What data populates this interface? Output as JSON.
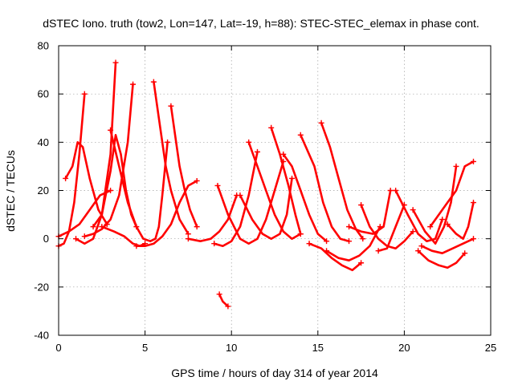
{
  "chart_data": {
    "type": "line",
    "title": "dSTEC Iono. truth (tow2, Lon=147, Lat=-19, h=88): STEC-STEC_elemax in phase cont.",
    "xlabel": "GPS time / hours of day 314 of year 2014",
    "ylabel": "dSTEC  / TECUs",
    "xlim": [
      0,
      25
    ],
    "ylim": [
      -40,
      80
    ],
    "x_ticks": [
      0,
      5,
      10,
      15,
      20,
      25
    ],
    "y_ticks": [
      -40,
      -20,
      0,
      20,
      40,
      60,
      80
    ],
    "grid": true,
    "legend": "none",
    "color": "#ff0000",
    "marker": "plus",
    "series": [
      {
        "x": [
          0.0,
          0.3,
          0.6,
          0.9,
          1.2,
          1.5
        ],
        "y": [
          -3,
          -2,
          3,
          15,
          35,
          60
        ]
      },
      {
        "x": [
          0.4,
          0.8,
          1.1,
          1.4,
          1.8,
          2.3,
          2.8
        ],
        "y": [
          25,
          30,
          40,
          38,
          25,
          12,
          6
        ]
      },
      {
        "x": [
          0.0,
          0.6,
          1.2,
          1.8,
          2.4,
          3.0
        ],
        "y": [
          1,
          3,
          6,
          12,
          18,
          20
        ]
      },
      {
        "x": [
          1.0,
          1.5,
          2.0,
          2.5,
          3.0,
          3.3
        ],
        "y": [
          0,
          -2,
          0,
          10,
          35,
          73
        ]
      },
      {
        "x": [
          1.5,
          2.0,
          2.5,
          3.0,
          3.5,
          4.0,
          4.3
        ],
        "y": [
          1,
          2,
          4,
          8,
          18,
          40,
          64
        ]
      },
      {
        "x": [
          2.0,
          2.5,
          3.0,
          3.3,
          3.6,
          3.9,
          4.2,
          4.5
        ],
        "y": [
          5,
          10,
          28,
          43,
          35,
          20,
          10,
          5
        ]
      },
      {
        "x": [
          3.0,
          3.5,
          4.0,
          4.5,
          4.9,
          5.3,
          5.6,
          5.8,
          6.0,
          6.3
        ],
        "y": [
          45,
          30,
          15,
          5,
          0,
          -1,
          0,
          5,
          18,
          40
        ]
      },
      {
        "x": [
          5.5,
          5.8,
          6.2,
          6.5,
          7.0,
          7.5
        ],
        "y": [
          65,
          50,
          30,
          20,
          8,
          2
        ]
      },
      {
        "x": [
          6.5,
          6.8,
          7.0,
          7.3,
          7.6,
          8.0
        ],
        "y": [
          55,
          40,
          30,
          20,
          12,
          5
        ]
      },
      {
        "x": [
          2.5,
          3.2,
          3.8,
          4.3,
          4.7,
          5.0
        ],
        "y": [
          5,
          3,
          1,
          -2,
          -3,
          -2
        ]
      },
      {
        "x": [
          4.5,
          5.0,
          5.5,
          6.0,
          6.5,
          7.0,
          7.5,
          8.0
        ],
        "y": [
          -3,
          -3,
          -2,
          1,
          6,
          15,
          22,
          24
        ]
      },
      {
        "x": [
          7.5,
          8.2,
          8.8,
          9.3,
          9.8,
          10.3
        ],
        "y": [
          0,
          -1,
          0,
          3,
          8,
          18
        ]
      },
      {
        "x": [
          9.0,
          9.5,
          10.0,
          10.5,
          11.0,
          11.5
        ],
        "y": [
          -2,
          -3,
          -1,
          5,
          18,
          36
        ]
      },
      {
        "x": [
          9.2,
          9.8,
          10.5,
          11.0,
          11.5,
          12.0,
          12.5,
          13.0
        ],
        "y": [
          22,
          10,
          0,
          -2,
          0,
          8,
          20,
          32
        ]
      },
      {
        "x": [
          9.3,
          9.5,
          9.8
        ],
        "y": [
          -23,
          -26,
          -28
        ]
      },
      {
        "x": [
          10.5,
          11.2,
          11.8,
          12.3,
          12.8,
          13.2,
          13.5
        ],
        "y": [
          18,
          8,
          2,
          0,
          2,
          10,
          25
        ]
      },
      {
        "x": [
          12.3,
          12.8,
          13.3,
          13.7,
          14.0
        ],
        "y": [
          46,
          35,
          22,
          10,
          2
        ]
      },
      {
        "x": [
          11.0,
          11.5,
          12.0,
          12.5,
          13.0,
          13.5,
          14.0
        ],
        "y": [
          40,
          30,
          20,
          10,
          3,
          0,
          2
        ]
      },
      {
        "x": [
          13.0,
          13.5,
          14.0,
          14.5,
          15.0,
          15.5
        ],
        "y": [
          35,
          30,
          20,
          10,
          2,
          -1
        ]
      },
      {
        "x": [
          14.0,
          14.8,
          15.3,
          15.8,
          16.3,
          16.8
        ],
        "y": [
          43,
          30,
          15,
          5,
          0,
          -1
        ]
      },
      {
        "x": [
          15.2,
          15.7,
          16.2,
          16.7,
          17.2,
          17.6
        ],
        "y": [
          48,
          38,
          25,
          12,
          4,
          0
        ]
      },
      {
        "x": [
          14.5,
          15.2,
          15.8,
          16.4,
          17.0,
          17.5
        ],
        "y": [
          -2,
          -4,
          -8,
          -11,
          -13,
          -10
        ]
      },
      {
        "x": [
          15.5,
          16.2,
          16.8,
          17.4,
          18.0,
          18.6
        ],
        "y": [
          -5,
          -8,
          -9,
          -7,
          -3,
          5
        ]
      },
      {
        "x": [
          16.8,
          17.5,
          18.2,
          18.8,
          19.2
        ],
        "y": [
          5,
          3,
          2,
          5,
          20
        ]
      },
      {
        "x": [
          17.5,
          18.0,
          18.5,
          19.0,
          19.5,
          20.0,
          20.5
        ],
        "y": [
          14,
          5,
          0,
          -3,
          -4,
          -1,
          3
        ]
      },
      {
        "x": [
          18.5,
          19.0,
          19.5,
          20.0
        ],
        "y": [
          -5,
          -4,
          5,
          14
        ]
      },
      {
        "x": [
          19.5,
          20.2,
          20.8,
          21.3,
          21.8,
          22.2
        ],
        "y": [
          20,
          10,
          2,
          -1,
          0,
          8
        ]
      },
      {
        "x": [
          20.5,
          21.2,
          21.8,
          22.3,
          22.7,
          23.0
        ],
        "y": [
          12,
          3,
          -2,
          5,
          15,
          30
        ]
      },
      {
        "x": [
          20.8,
          21.4,
          22.0,
          22.5,
          23.0,
          23.5
        ],
        "y": [
          -5,
          -9,
          -11,
          -12,
          -10,
          -6
        ]
      },
      {
        "x": [
          21.0,
          21.6,
          22.2,
          22.8,
          23.4,
          24.0
        ],
        "y": [
          -3,
          -5,
          -6,
          -4,
          -2,
          0
        ]
      },
      {
        "x": [
          21.5,
          22.0,
          22.5,
          23.0,
          23.5,
          24.0
        ],
        "y": [
          5,
          10,
          15,
          20,
          30,
          32
        ]
      },
      {
        "x": [
          22.5,
          23.0,
          23.4,
          23.7,
          24.0
        ],
        "y": [
          6,
          2,
          0,
          5,
          15
        ]
      }
    ]
  }
}
